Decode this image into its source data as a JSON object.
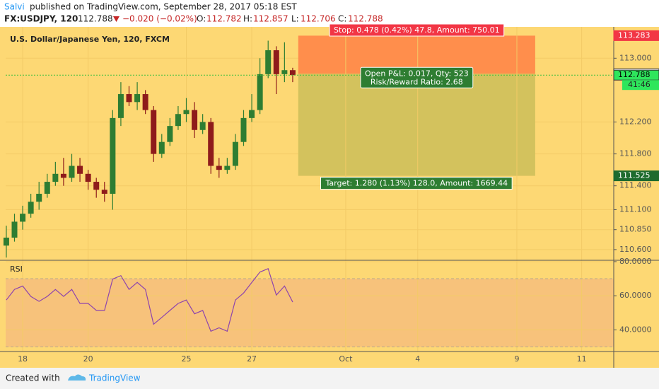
{
  "header": {
    "author": "Salvi",
    "published": "published on TradingView.com, September 28, 2017 05:18 EST",
    "symbol": "FX:USDJPY, 120",
    "last": "112.788",
    "change": "−0.020 (−0.02%)",
    "o_label": "O:",
    "o": "112.782",
    "h_label": "H:",
    "h": "112.857",
    "l_label": "L:",
    "l": "112.706",
    "c_label": "C:",
    "c": "112.788"
  },
  "chart_data": [
    {
      "type": "candlestick",
      "title": "U.S. Dollar/Japanese Yen, 120, FXCM",
      "x": [
        -0.5,
        -0.25,
        0,
        0.25,
        0.5,
        0.75,
        1,
        1.25,
        1.5,
        1.75,
        2,
        2.25,
        2.5,
        2.75,
        3,
        3.25,
        3.5,
        3.75,
        4,
        4.25,
        4.5,
        4.75,
        5,
        5.25,
        5.5,
        5.75,
        6,
        6.25,
        6.5,
        6.75,
        7,
        7.25,
        7.5,
        7.75,
        8,
        8.25
      ],
      "open": [
        110.65,
        110.75,
        110.95,
        111.05,
        111.2,
        111.3,
        111.45,
        111.55,
        111.5,
        111.65,
        111.55,
        111.45,
        111.35,
        111.3,
        112.25,
        112.55,
        112.45,
        112.55,
        112.35,
        111.8,
        111.95,
        112.15,
        112.3,
        112.35,
        112.1,
        112.2,
        111.65,
        111.6,
        111.65,
        111.95,
        112.25,
        112.35,
        112.8,
        113.1,
        112.8,
        112.85
      ],
      "high": [
        110.9,
        111.05,
        111.15,
        111.3,
        111.45,
        111.55,
        111.7,
        111.75,
        111.8,
        111.75,
        111.6,
        111.5,
        111.45,
        112.35,
        112.7,
        112.65,
        112.7,
        112.6,
        112.4,
        112.05,
        112.25,
        112.4,
        112.5,
        112.45,
        112.3,
        112.25,
        111.75,
        111.75,
        112.05,
        112.35,
        112.55,
        113.0,
        113.22,
        113.15,
        113.2,
        112.88
      ],
      "low": [
        110.5,
        110.7,
        110.85,
        111.0,
        111.1,
        111.25,
        111.4,
        111.4,
        111.45,
        111.45,
        111.35,
        111.25,
        111.2,
        111.1,
        112.15,
        112.4,
        112.35,
        112.3,
        111.7,
        111.75,
        111.9,
        112.1,
        112.2,
        112.0,
        112.05,
        111.55,
        111.5,
        111.55,
        111.6,
        111.9,
        112.2,
        112.3,
        112.75,
        112.55,
        112.7,
        112.7
      ],
      "close": [
        110.75,
        110.95,
        111.05,
        111.2,
        111.3,
        111.45,
        111.55,
        111.5,
        111.65,
        111.55,
        111.45,
        111.35,
        111.3,
        112.25,
        112.55,
        112.45,
        112.55,
        112.35,
        111.8,
        111.95,
        112.15,
        112.3,
        112.35,
        112.1,
        112.2,
        111.65,
        111.6,
        111.65,
        111.95,
        112.25,
        112.35,
        112.8,
        113.1,
        112.8,
        112.85,
        112.788
      ],
      "up_color": "#2e7d32",
      "down_color": "#8e1b1b",
      "xlim": [
        -0.52,
        18.06
      ],
      "ylim": [
        110.466,
        113.393
      ],
      "yticks": [
        {
          "value": 113,
          "label": "113.000"
        },
        {
          "value": 112.2,
          "label": "112.200"
        },
        {
          "value": 111.8,
          "label": "111.800"
        },
        {
          "value": 111.4,
          "label": "111.400"
        },
        {
          "value": 111.1,
          "label": "111.100"
        },
        {
          "value": 110.85,
          "label": "110.850"
        },
        {
          "value": 110.6,
          "label": "110.600"
        }
      ],
      "price_labels": [
        {
          "value": 113.283,
          "label": "113.283",
          "color": "#f23645"
        },
        {
          "value": 112.805,
          "label": "112.805",
          "color": "#ffffff"
        },
        {
          "value": 112.788,
          "label": "112.788",
          "color": "#2ee65c"
        },
        {
          "value": 111.525,
          "label": "111.525",
          "color": "#1e6b2e"
        }
      ],
      "countdown": "41:46",
      "position": {
        "start": 8.42,
        "end": 15.66,
        "entry": 112.805,
        "stop": 113.283,
        "target": 111.525,
        "stop_label": "Stop: 0.478 (0.42%) 47.8, Amount: 750.01",
        "pnl_label": "Open P&L: 0.017, Qty: 523",
        "rr_label": "Risk/Reward Ratio: 2.68",
        "target_label": "Target: 1.280 (1.13%) 128.0, Amount: 1669.44"
      },
      "grid": true
    },
    {
      "type": "line",
      "title": "RSI",
      "x": [
        -0.5,
        -0.25,
        0,
        0.25,
        0.5,
        0.75,
        1,
        1.25,
        1.5,
        1.75,
        2,
        2.25,
        2.5,
        2.75,
        3,
        3.25,
        3.5,
        3.75,
        4,
        4.25,
        4.5,
        4.75,
        5,
        5.25,
        5.5,
        5.75,
        6,
        6.25,
        6.5,
        6.75,
        7,
        7.25,
        7.5,
        7.75,
        8,
        8.25
      ],
      "values": [
        57.5,
        63.7,
        65.7,
        59.6,
        56.7,
        59.6,
        63.7,
        59.6,
        63.7,
        55.5,
        55.5,
        51.4,
        51.4,
        69.8,
        71.8,
        63.7,
        67.8,
        63.7,
        43.3,
        47.3,
        51.4,
        55.5,
        57.5,
        49.4,
        51.4,
        39.2,
        41.2,
        39.2,
        57.5,
        61.6,
        67.8,
        73.9,
        75.9,
        60.4,
        65.7,
        56.3
      ],
      "color": "#8e44ad",
      "band": [
        30,
        70
      ],
      "xlim": [
        -0.52,
        18.06
      ],
      "ylim": [
        27.3,
        80.8
      ],
      "yticks": [
        {
          "value": 80,
          "label": "80.0000"
        },
        {
          "value": 60,
          "label": "60.0000"
        },
        {
          "value": 40,
          "label": "40.0000"
        }
      ],
      "xticks": [
        {
          "value": 0,
          "label": "18"
        },
        {
          "value": 2,
          "label": "20"
        },
        {
          "value": 5,
          "label": "25"
        },
        {
          "value": 7,
          "label": "27"
        },
        {
          "value": 9.87,
          "label": "Oct"
        },
        {
          "value": 12.07,
          "label": "4"
        },
        {
          "value": 15.1,
          "label": "9"
        },
        {
          "value": 17.08,
          "label": "11"
        }
      ],
      "grid": true
    }
  ],
  "footer": {
    "created": "Created with",
    "brand": "TradingView"
  }
}
